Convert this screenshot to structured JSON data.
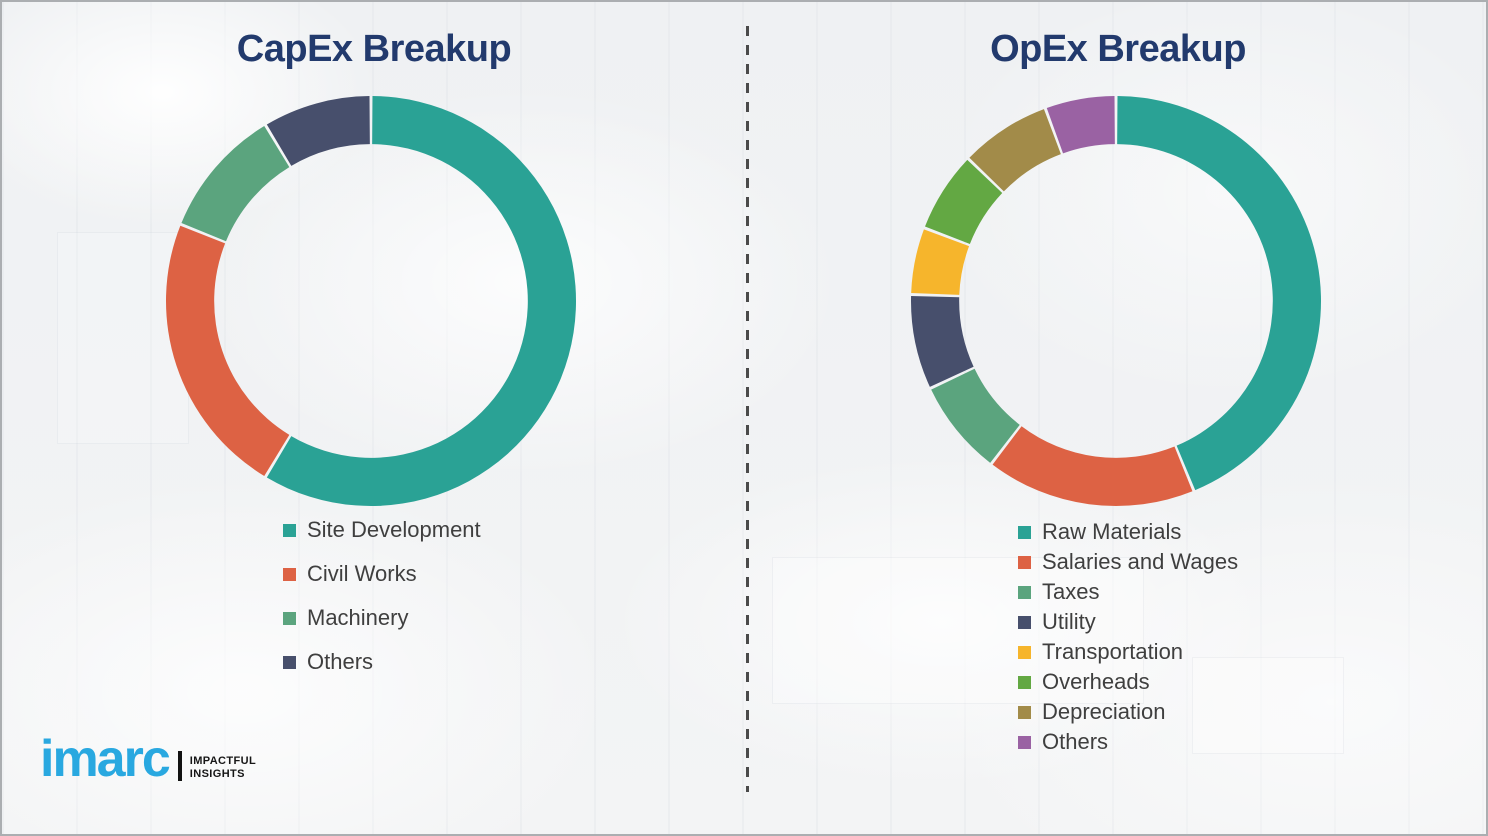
{
  "page": {
    "background_color": "#f1f2f4",
    "border_color": "#abaeb1",
    "divider_color": "#4a4a4a"
  },
  "logo": {
    "brand": "imarc",
    "brand_color": "#29A8E0",
    "tagline_line1": "IMPACTFUL",
    "tagline_line2": "INSIGHTS",
    "tagline_color": "#161616"
  },
  "chart_data": [
    {
      "type": "pie",
      "subtype": "donut",
      "title": "CapEx Breakup",
      "title_color": "#223A6D",
      "categories": [
        "Site Development",
        "Civil Works",
        "Machinery",
        "Others"
      ],
      "values": [
        58.6,
        22.5,
        10.3,
        8.6
      ],
      "unit": "percent",
      "values_are_estimates": true,
      "colors": [
        "#2AA295",
        "#DD6244",
        "#5BA47E",
        "#474F6C"
      ],
      "legend_position": "below-left",
      "donut_hole_ratio": 0.765,
      "start_angle_deg": 0,
      "direction": "clockwise"
    },
    {
      "type": "pie",
      "subtype": "donut",
      "title": "OpEx Breakup",
      "title_color": "#223A6D",
      "categories": [
        "Raw Materials",
        "Salaries and Wages",
        "Taxes",
        "Utility",
        "Transportation",
        "Overheads",
        "Depreciation",
        "Others"
      ],
      "values": [
        43.8,
        16.6,
        7.6,
        7.5,
        5.3,
        6.4,
        7.2,
        5.6
      ],
      "unit": "percent",
      "values_are_estimates": true,
      "colors": [
        "#2AA295",
        "#DD6244",
        "#5BA47E",
        "#474F6C",
        "#F6B52C",
        "#63A843",
        "#A28B49",
        "#9A62A3"
      ],
      "legend_position": "below-left",
      "donut_hole_ratio": 0.765,
      "start_angle_deg": 0,
      "direction": "clockwise"
    }
  ]
}
